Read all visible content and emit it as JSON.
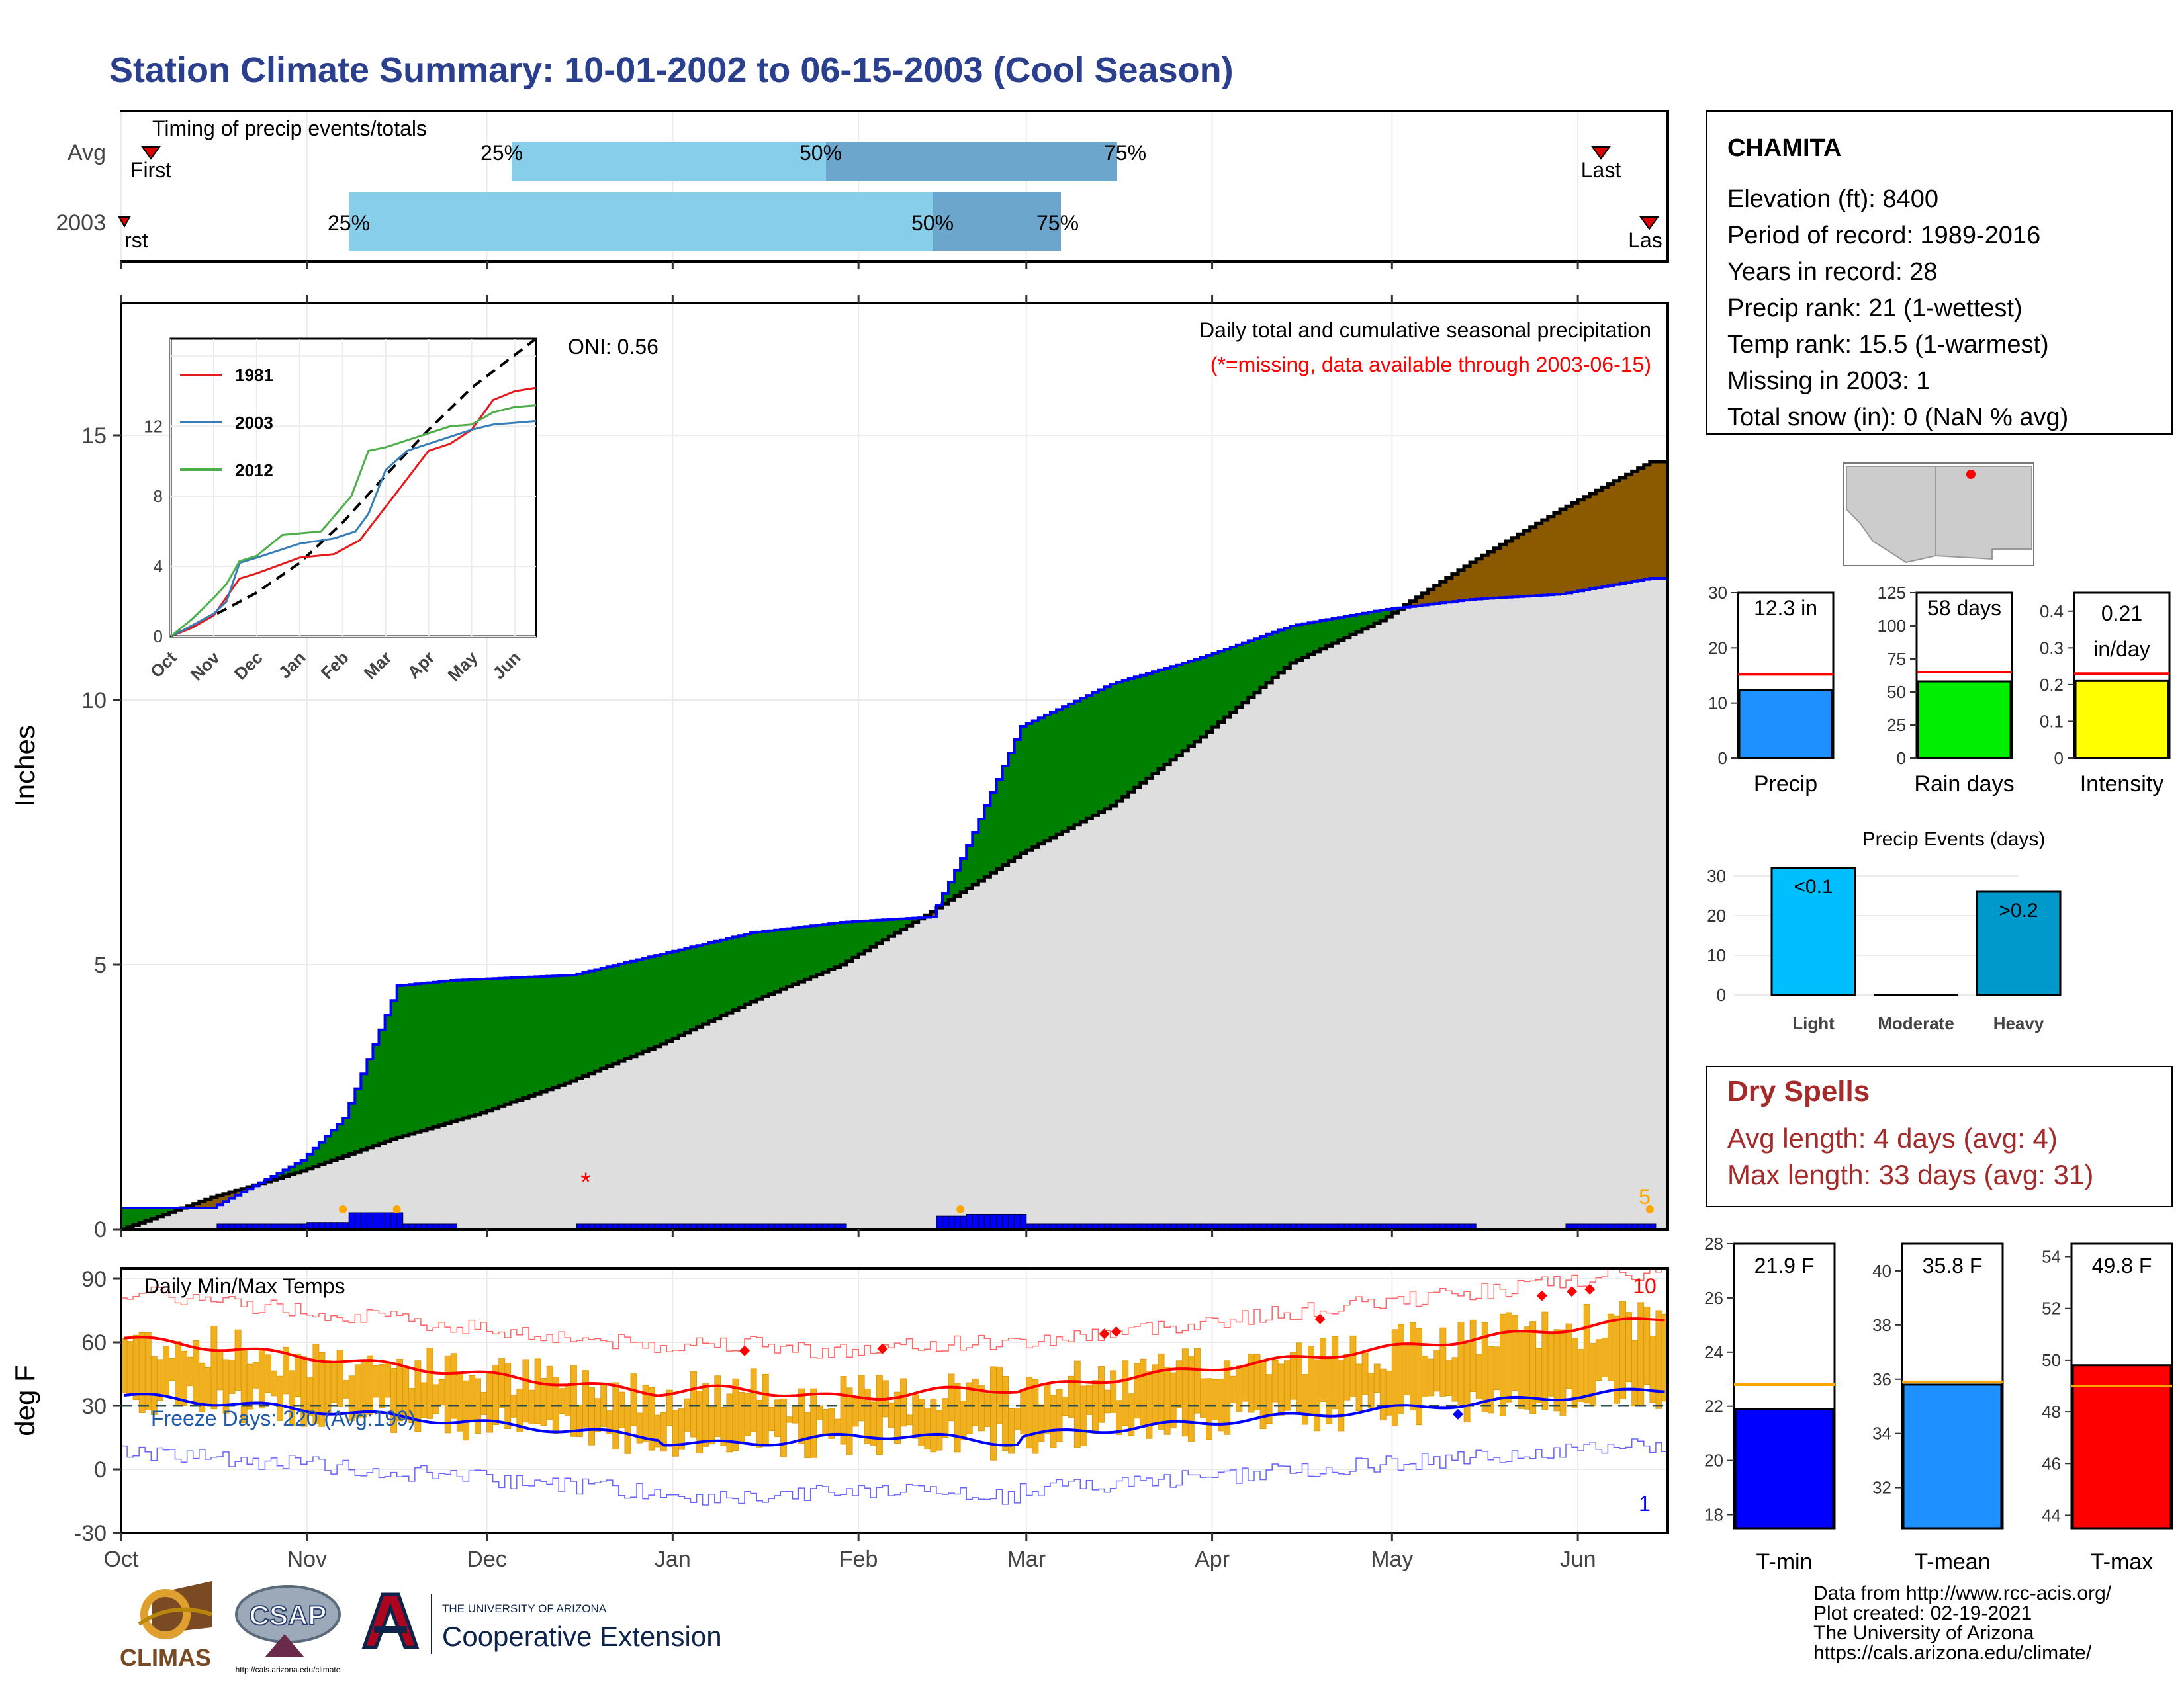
{
  "title": "Station Climate Summary: 10-01-2002 to 06-15-2003 (Cool Season)",
  "timing": {
    "label": "Timing of precip events/totals",
    "rows": [
      "Avg",
      "2003"
    ],
    "avg_pct": [
      "25%",
      "50%",
      "75%"
    ],
    "y2003_pct": [
      "25%",
      "50%",
      "75%"
    ],
    "first": "First",
    "last": "Last",
    "first_2003": "rst",
    "last_2003": "Las"
  },
  "precip_panel": {
    "ylabel": "Inches",
    "oni": "ONI: 0.56",
    "note1": "Daily total and cumulative seasonal precipitation",
    "note2": "(*=missing, data available through 2003-06-15)",
    "corner_count": "5",
    "inset_legend": [
      "1981",
      "2003",
      "2012"
    ],
    "inset_xticks": [
      "Oct",
      "Nov",
      "Dec",
      "Jan",
      "Feb",
      "Mar",
      "Apr",
      "May",
      "Jun"
    ],
    "inset_yticks": [
      "0",
      "4",
      "8",
      "12"
    ]
  },
  "temp_panel": {
    "ylabel": "deg F",
    "label": "Daily Min/Max Temps",
    "freeze": "Freeze Days: 220 (Avg:199)",
    "top_count": "10",
    "bottom_count": "1"
  },
  "months": [
    "Oct",
    "Nov",
    "Dec",
    "Jan",
    "Feb",
    "Mar",
    "Apr",
    "May",
    "Jun"
  ],
  "station": {
    "name": "CHAMITA",
    "lines": [
      "Elevation (ft): 8400",
      "Period of record: 1989-2016",
      "Years in record: 28",
      "Precip rank: 21 (1-wettest)",
      "Temp rank: 15.5 (1-warmest)",
      "Missing in 2003: 1",
      "Total snow (in): 0 (NaN % avg)"
    ]
  },
  "small_bars": {
    "precip": {
      "label": "Precip",
      "value_text": "12.3 in",
      "value": 12.3,
      "avg": 15.2,
      "ylim": [
        0,
        30
      ],
      "color": "#1E90FF"
    },
    "rain_days": {
      "label": "Rain days",
      "value_text": "58 days",
      "value": 58,
      "avg": 65,
      "ylim": [
        0,
        125
      ],
      "color": "#00EE00"
    },
    "intensity": {
      "label": "Intensity",
      "value_text": "0.21 in/day",
      "value": 0.21,
      "avg": 0.23,
      "ylim": [
        0,
        0.45
      ],
      "color": "#FFFF00"
    }
  },
  "precip_events": {
    "title": "Precip Events (days)",
    "categories": [
      "Light",
      "Moderate",
      "Heavy"
    ],
    "values": [
      32,
      0,
      26
    ],
    "value_labels": [
      "<0.1",
      "",
      ">0.2"
    ],
    "ylim": [
      0,
      32
    ]
  },
  "dry_spells": {
    "title": "Dry Spells",
    "avg": "Avg length: 4 days (avg: 4)",
    "max": "Max length: 33 days (avg: 31)"
  },
  "temp_bars": {
    "tmin": {
      "label": "T-min",
      "value_text": "21.9 F",
      "value": 21.9,
      "avg": 22.8,
      "ylim": [
        17.5,
        28
      ],
      "color": "#0000FF"
    },
    "tmean": {
      "label": "T-mean",
      "value_text": "35.8 F",
      "value": 35.8,
      "avg": 35.9,
      "ylim": [
        30.5,
        41
      ],
      "color": "#1E90FF"
    },
    "tmax": {
      "label": "T-max",
      "value_text": "49.8 F",
      "value": 49.8,
      "avg": 49.0,
      "ylim": [
        43.5,
        54.5
      ],
      "color": "#FF0000"
    }
  },
  "footer": {
    "credits": [
      "Data from http://www.rcc-acis.org/",
      "Plot created: 02-19-2021",
      "The University of Arizona",
      "https://cals.arizona.edu/climate/"
    ],
    "logo_climas": "CLIMAS",
    "logo_csap": "CSAP",
    "logo_csap_url": "http://cals.arizona.edu/climate",
    "ua_small": "THE UNIVERSITY OF ARIZONA",
    "ua_big": "Cooperative Extension"
  },
  "chart_data": {
    "type": "area",
    "title": "Daily total and cumulative seasonal precipitation",
    "ylabel": "Inches",
    "ylim": [
      0,
      17.5
    ],
    "x_months": [
      "Oct",
      "Nov",
      "Dec",
      "Jan",
      "Feb",
      "Mar",
      "Apr",
      "May",
      "Jun"
    ],
    "series": [
      {
        "name": "avg cumulative",
        "x_day": [
          0,
          15,
          30,
          45,
          60,
          75,
          90,
          105,
          120,
          135,
          150,
          165,
          180,
          195,
          210,
          225,
          240,
          255
        ],
        "values": [
          0.0,
          0.6,
          1.1,
          1.7,
          2.2,
          2.8,
          3.5,
          4.3,
          5.0,
          6.0,
          7.1,
          8.0,
          9.3,
          10.7,
          11.5,
          12.6,
          13.6,
          14.5
        ]
      },
      {
        "name": "2003",
        "x_day": [
          0,
          15,
          30,
          37,
          46,
          55,
          75,
          90,
          105,
          120,
          135,
          140,
          150,
          165,
          180,
          195,
          210,
          225,
          240,
          255
        ],
        "values": [
          0.4,
          0.4,
          1.3,
          2.1,
          4.6,
          4.7,
          4.8,
          5.2,
          5.6,
          5.8,
          5.9,
          7.0,
          9.5,
          10.3,
          10.8,
          11.4,
          11.7,
          11.9,
          12.0,
          12.3
        ]
      }
    ]
  }
}
